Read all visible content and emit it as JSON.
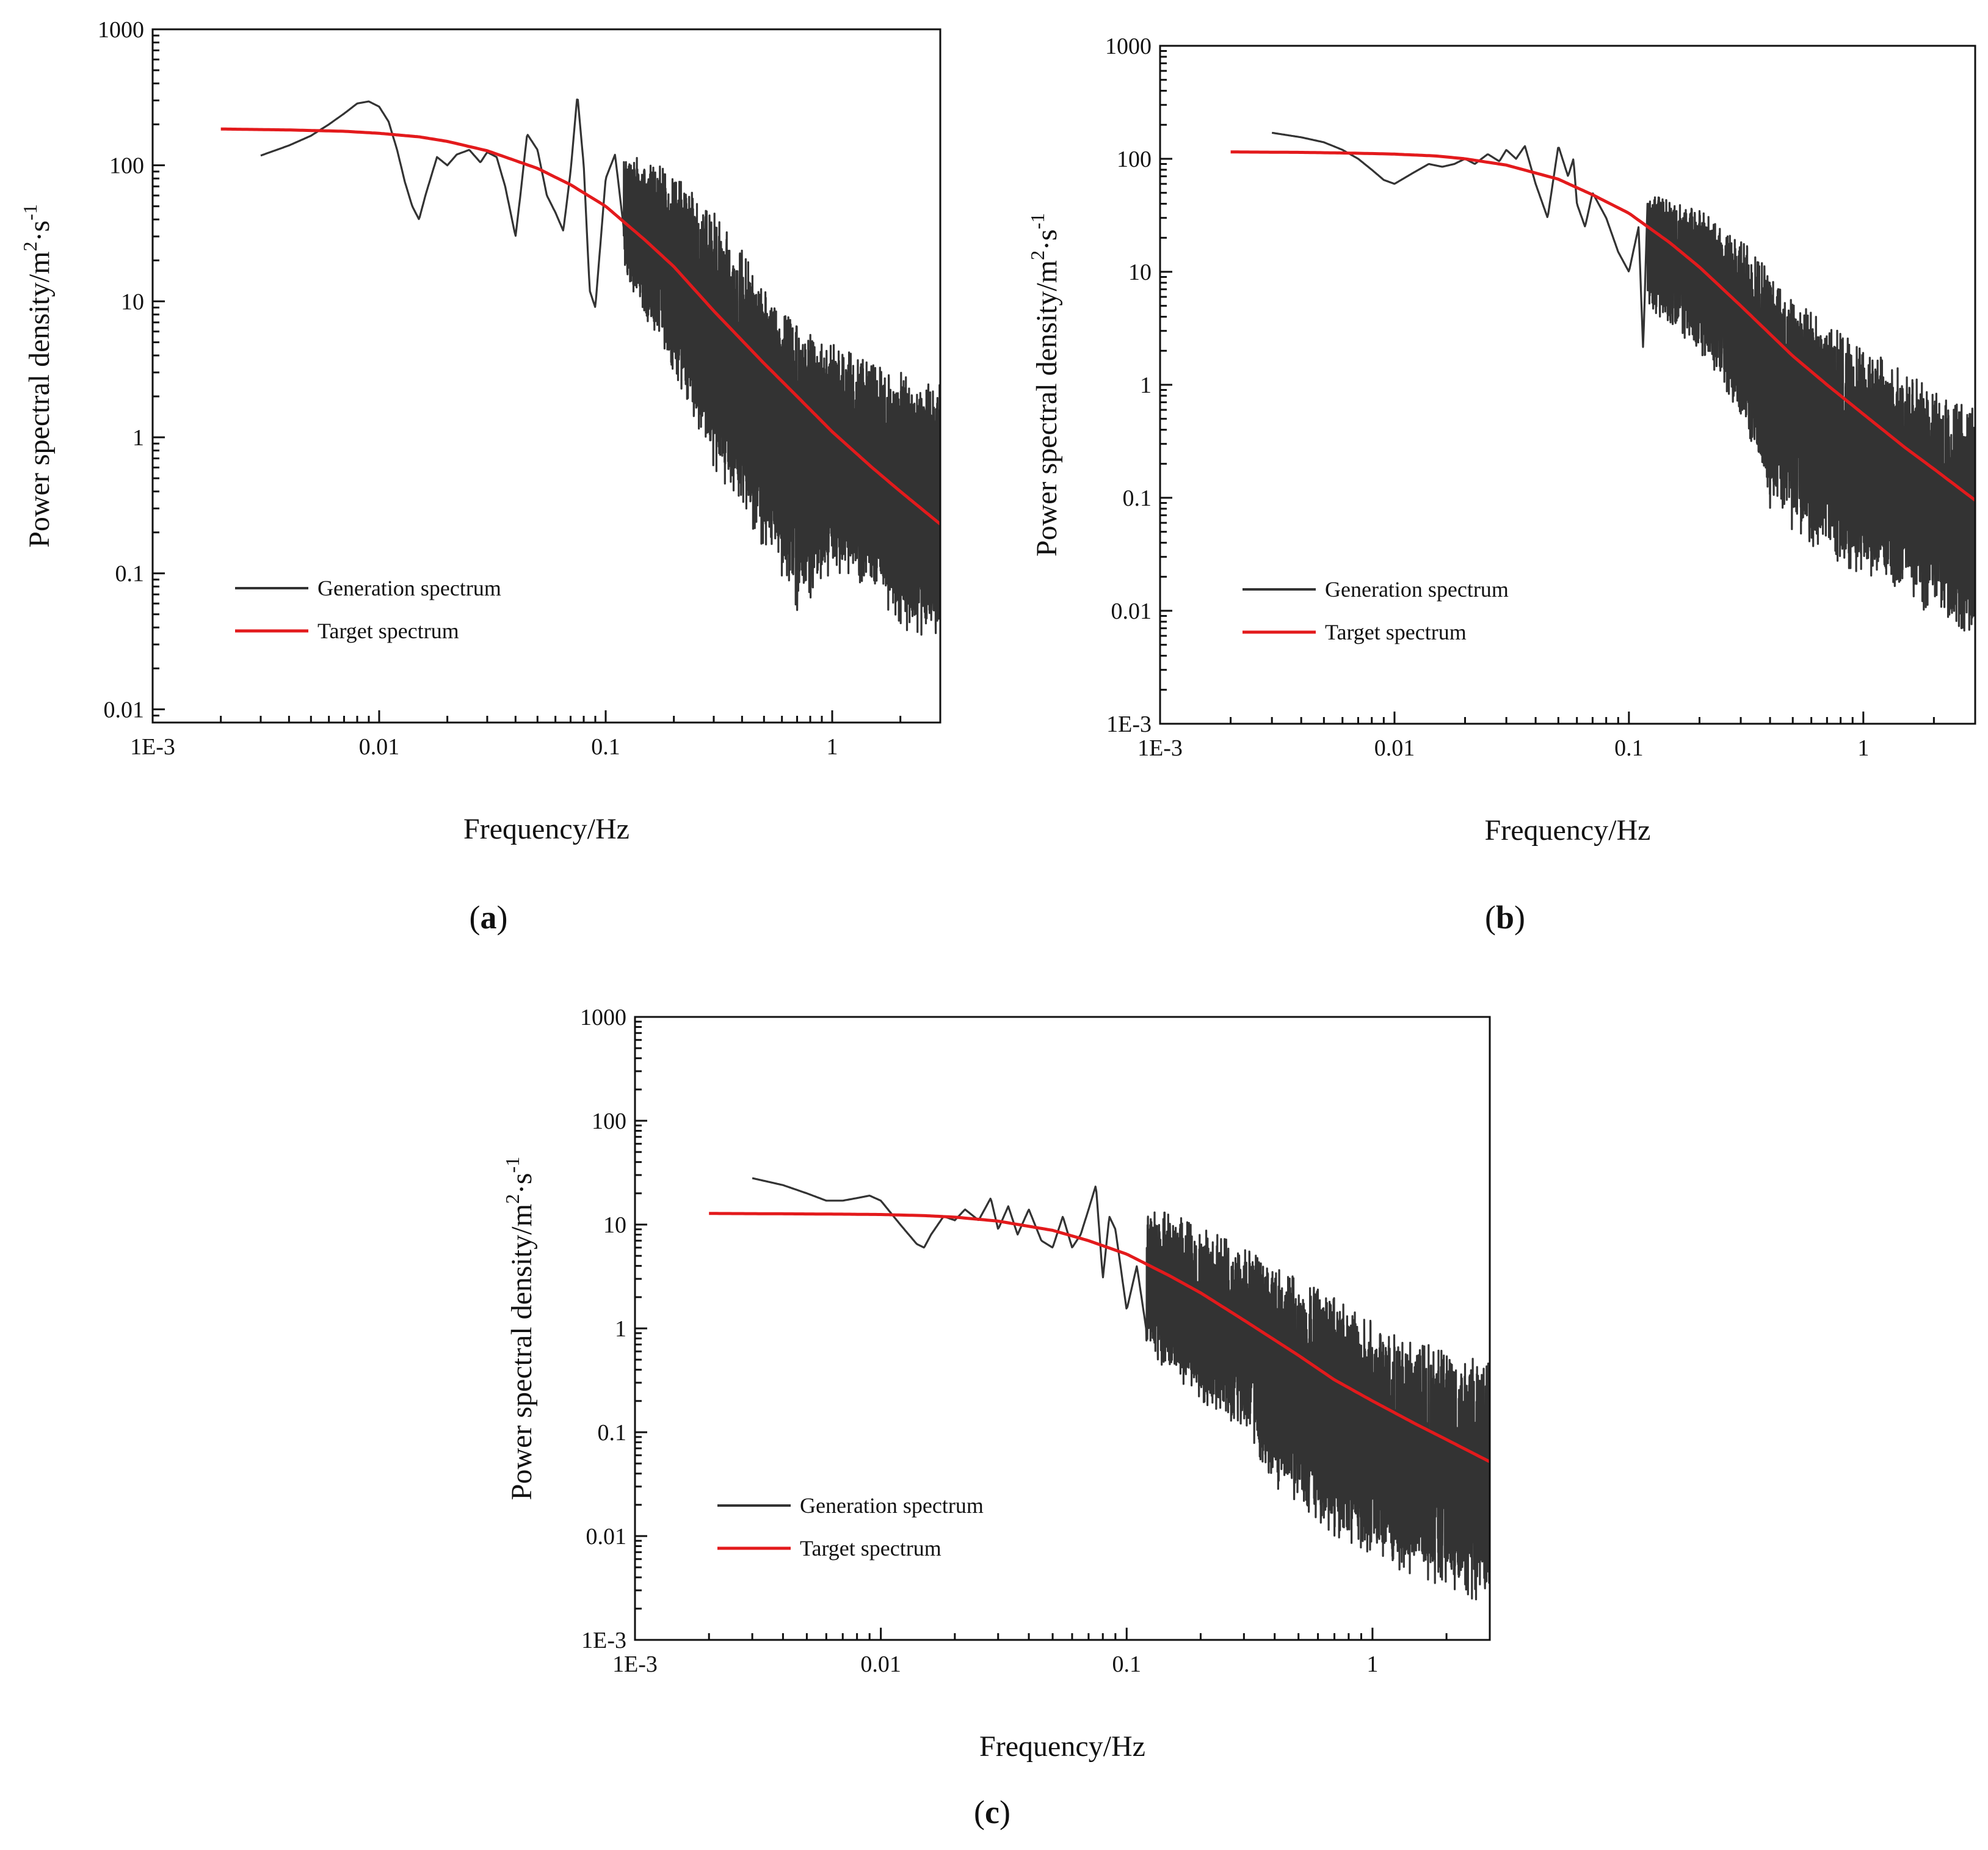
{
  "chart_data": [
    {
      "type": "line",
      "panel_label": "(a)",
      "panel_letter": "a",
      "xscale": "log",
      "yscale": "log",
      "xlim": [
        0.001,
        3.0
      ],
      "ylim": [
        0.008,
        1000
      ],
      "xticks": [
        0.001,
        0.01,
        0.1,
        1
      ],
      "xtick_labels": [
        "1E-3",
        "0.01",
        "0.1",
        "1"
      ],
      "yticks": [
        0.01,
        0.1,
        1,
        10,
        100,
        1000
      ],
      "ytick_labels": [
        "0.01",
        "0.1",
        "1",
        "10",
        "100",
        "1000"
      ],
      "xlabel": "Frequency/Hz",
      "ylabel": "Power spectral density/m",
      "ylabel_sup1": "2",
      "ylabel_mid": "·s",
      "ylabel_sup2": "-1",
      "legend_position": "lower-left",
      "target_spectrum": {
        "name": "Target spectrum",
        "color": "#e31a1c",
        "x": [
          0.002,
          0.004,
          0.007,
          0.01,
          0.015,
          0.02,
          0.03,
          0.05,
          0.07,
          0.1,
          0.15,
          0.2,
          0.3,
          0.5,
          0.7,
          1.0,
          1.5,
          2.0,
          3.0
        ],
        "y": [
          185,
          182,
          178,
          172,
          162,
          150,
          128,
          95,
          72,
          50,
          28,
          18,
          8.5,
          3.5,
          2.0,
          1.1,
          0.6,
          0.4,
          0.23
        ]
      },
      "generation_spectrum": {
        "name": "Generation spectrum",
        "color": "#333333",
        "x": [
          0.003,
          0.004,
          0.005,
          0.006,
          0.007,
          0.008,
          0.009,
          0.01,
          0.011,
          0.012,
          0.013,
          0.014,
          0.015,
          0.016,
          0.018,
          0.02,
          0.022,
          0.025,
          0.028,
          0.03,
          0.033,
          0.036,
          0.04,
          0.042,
          0.045,
          0.05,
          0.055,
          0.06,
          0.065,
          0.07,
          0.075,
          0.08,
          0.085,
          0.09,
          0.1,
          0.11,
          0.12,
          0.13,
          0.14,
          0.15,
          0.17,
          0.2,
          0.25,
          0.3,
          0.35,
          0.4,
          0.45,
          0.5,
          0.6,
          0.7,
          0.8,
          1.0,
          1.2,
          1.5,
          2.0,
          2.5,
          3.0
        ],
        "y": [
          118,
          140,
          165,
          200,
          240,
          285,
          295,
          270,
          210,
          130,
          75,
          50,
          40,
          60,
          115,
          100,
          120,
          130,
          105,
          125,
          115,
          70,
          30,
          60,
          170,
          130,
          60,
          45,
          33,
          90,
          330,
          100,
          12,
          9,
          80,
          120,
          35,
          125,
          20,
          120,
          30,
          130,
          30,
          12,
          6,
          2.5,
          0.4,
          1.0,
          0.3,
          0.5,
          0.2,
          0.3,
          0.08,
          0.05,
          0.04,
          0.03,
          0.1
        ],
        "envelope_hi": [
          125,
          90,
          45,
          25,
          12,
          6.5,
          5,
          3.5,
          3.0,
          2.5
        ],
        "envelope_lo": [
          15,
          3.0,
          0.6,
          0.3,
          0.15,
          0.05,
          0.1,
          0.08,
          0.04,
          0.03
        ],
        "envelope_x": [
          0.12,
          0.2,
          0.3,
          0.4,
          0.5,
          0.7,
          1.0,
          1.5,
          2.0,
          3.0
        ]
      }
    },
    {
      "type": "line",
      "panel_label": "(b)",
      "panel_letter": "b",
      "xscale": "log",
      "yscale": "log",
      "xlim": [
        0.001,
        3.0
      ],
      "ylim": [
        0.001,
        1000
      ],
      "xticks": [
        0.001,
        0.01,
        0.1,
        1
      ],
      "xtick_labels": [
        "1E-3",
        "0.01",
        "0.1",
        "1"
      ],
      "yticks": [
        0.001,
        0.01,
        0.1,
        1,
        10,
        100,
        1000
      ],
      "ytick_labels": [
        "1E-3",
        "0.01",
        "0.1",
        "1",
        "10",
        "100",
        "1000"
      ],
      "xlabel": "Frequency/Hz",
      "ylabel": "Power spectral density/m",
      "ylabel_sup1": "2",
      "ylabel_mid": "·s",
      "ylabel_sup2": "-1",
      "legend_position": "lower-left",
      "target_spectrum": {
        "name": "Target spectrum",
        "color": "#e31a1c",
        "x": [
          0.002,
          0.004,
          0.007,
          0.01,
          0.015,
          0.02,
          0.03,
          0.05,
          0.07,
          0.1,
          0.15,
          0.2,
          0.3,
          0.5,
          0.7,
          1.0,
          1.5,
          2.0,
          3.0
        ],
        "y": [
          115,
          114,
          112,
          110,
          106,
          100,
          88,
          66,
          48,
          33,
          18,
          11,
          5,
          1.8,
          1.0,
          0.55,
          0.28,
          0.18,
          0.095
        ]
      },
      "generation_spectrum": {
        "name": "Generation spectrum",
        "color": "#333333",
        "x": [
          0.003,
          0.004,
          0.005,
          0.006,
          0.007,
          0.008,
          0.009,
          0.01,
          0.012,
          0.014,
          0.016,
          0.018,
          0.02,
          0.022,
          0.025,
          0.028,
          0.03,
          0.033,
          0.036,
          0.04,
          0.045,
          0.05,
          0.055,
          0.058,
          0.06,
          0.065,
          0.07,
          0.08,
          0.09,
          0.1,
          0.11,
          0.115,
          0.12,
          0.13,
          0.15,
          0.17,
          0.2,
          0.25,
          0.3,
          0.4,
          0.5,
          0.7,
          1.0,
          1.5,
          2.0,
          3.0
        ],
        "y": [
          170,
          155,
          140,
          120,
          100,
          80,
          65,
          60,
          75,
          90,
          85,
          90,
          100,
          90,
          110,
          95,
          120,
          100,
          130,
          60,
          30,
          130,
          70,
          100,
          40,
          25,
          50,
          30,
          15,
          10,
          25,
          2,
          40,
          15,
          30,
          10,
          20,
          8,
          3,
          1.5,
          0.8,
          0.3,
          0.2,
          0.1,
          0.05,
          0.05
        ],
        "envelope_hi": [
          50,
          35,
          20,
          10,
          6,
          3.5,
          2.2,
          1.3,
          0.9,
          0.6
        ],
        "envelope_lo": [
          5,
          2.0,
          0.5,
          0.08,
          0.05,
          0.03,
          0.02,
          0.015,
          0.008,
          0.006
        ],
        "envelope_x": [
          0.12,
          0.2,
          0.3,
          0.4,
          0.5,
          0.7,
          1.0,
          1.5,
          2.0,
          3.0
        ]
      }
    },
    {
      "type": "line",
      "panel_label": "(c)",
      "panel_letter": "c",
      "xscale": "log",
      "yscale": "log",
      "xlim": [
        0.001,
        3.0
      ],
      "ylim": [
        0.001,
        1000
      ],
      "xticks": [
        0.001,
        0.01,
        0.1,
        1
      ],
      "xtick_labels": [
        "1E-3",
        "0.01",
        "0.1",
        "1"
      ],
      "yticks": [
        0.001,
        0.01,
        0.1,
        1,
        10,
        100,
        1000
      ],
      "ytick_labels": [
        "1E-3",
        "0.01",
        "0.1",
        "1",
        "10",
        "100",
        "1000"
      ],
      "xlabel": "Frequency/Hz",
      "ylabel": "Power spectral density/m",
      "ylabel_sup1": "2",
      "ylabel_mid": "·s",
      "ylabel_sup2": "-1",
      "legend_position": "lower-left",
      "target_spectrum": {
        "name": "Target spectrum",
        "color": "#e31a1c",
        "x": [
          0.002,
          0.004,
          0.007,
          0.01,
          0.015,
          0.02,
          0.03,
          0.05,
          0.07,
          0.1,
          0.15,
          0.2,
          0.3,
          0.5,
          0.7,
          1.0,
          1.5,
          2.0,
          3.0
        ],
        "y": [
          12.8,
          12.7,
          12.6,
          12.5,
          12.2,
          11.8,
          10.8,
          8.8,
          7.0,
          5.2,
          3.2,
          2.2,
          1.2,
          0.55,
          0.32,
          0.2,
          0.12,
          0.085,
          0.052
        ]
      },
      "generation_spectrum": {
        "name": "Generation spectrum",
        "color": "#333333",
        "x": [
          0.003,
          0.004,
          0.005,
          0.006,
          0.007,
          0.008,
          0.009,
          0.01,
          0.012,
          0.014,
          0.015,
          0.016,
          0.018,
          0.02,
          0.022,
          0.025,
          0.028,
          0.03,
          0.033,
          0.036,
          0.04,
          0.045,
          0.05,
          0.055,
          0.06,
          0.065,
          0.07,
          0.075,
          0.08,
          0.085,
          0.09,
          0.1,
          0.11,
          0.12,
          0.13,
          0.15,
          0.17,
          0.2,
          0.25,
          0.3,
          0.4,
          0.5,
          0.7,
          1.0,
          1.5,
          2.0,
          3.0
        ],
        "y": [
          28,
          24,
          20,
          17,
          17,
          18,
          19,
          17,
          10,
          6.5,
          6.0,
          8,
          12,
          11,
          14,
          11,
          18,
          9,
          15,
          8,
          14,
          7,
          6,
          12,
          6,
          8,
          14,
          24,
          3,
          12,
          9,
          1.5,
          4,
          1.0,
          8,
          2,
          15,
          1.5,
          8,
          0.5,
          1.5,
          0.3,
          0.2,
          0.1,
          0.05,
          0.02,
          0.06
        ],
        "envelope_hi": [
          15,
          10,
          6,
          4,
          3,
          2,
          1.2,
          0.8,
          0.6,
          0.6
        ],
        "envelope_lo": [
          0.6,
          0.2,
          0.1,
          0.03,
          0.02,
          0.01,
          0.006,
          0.004,
          0.003,
          0.002
        ],
        "envelope_x": [
          0.12,
          0.2,
          0.3,
          0.4,
          0.5,
          0.7,
          1.0,
          1.5,
          2.0,
          3.0
        ]
      }
    }
  ]
}
